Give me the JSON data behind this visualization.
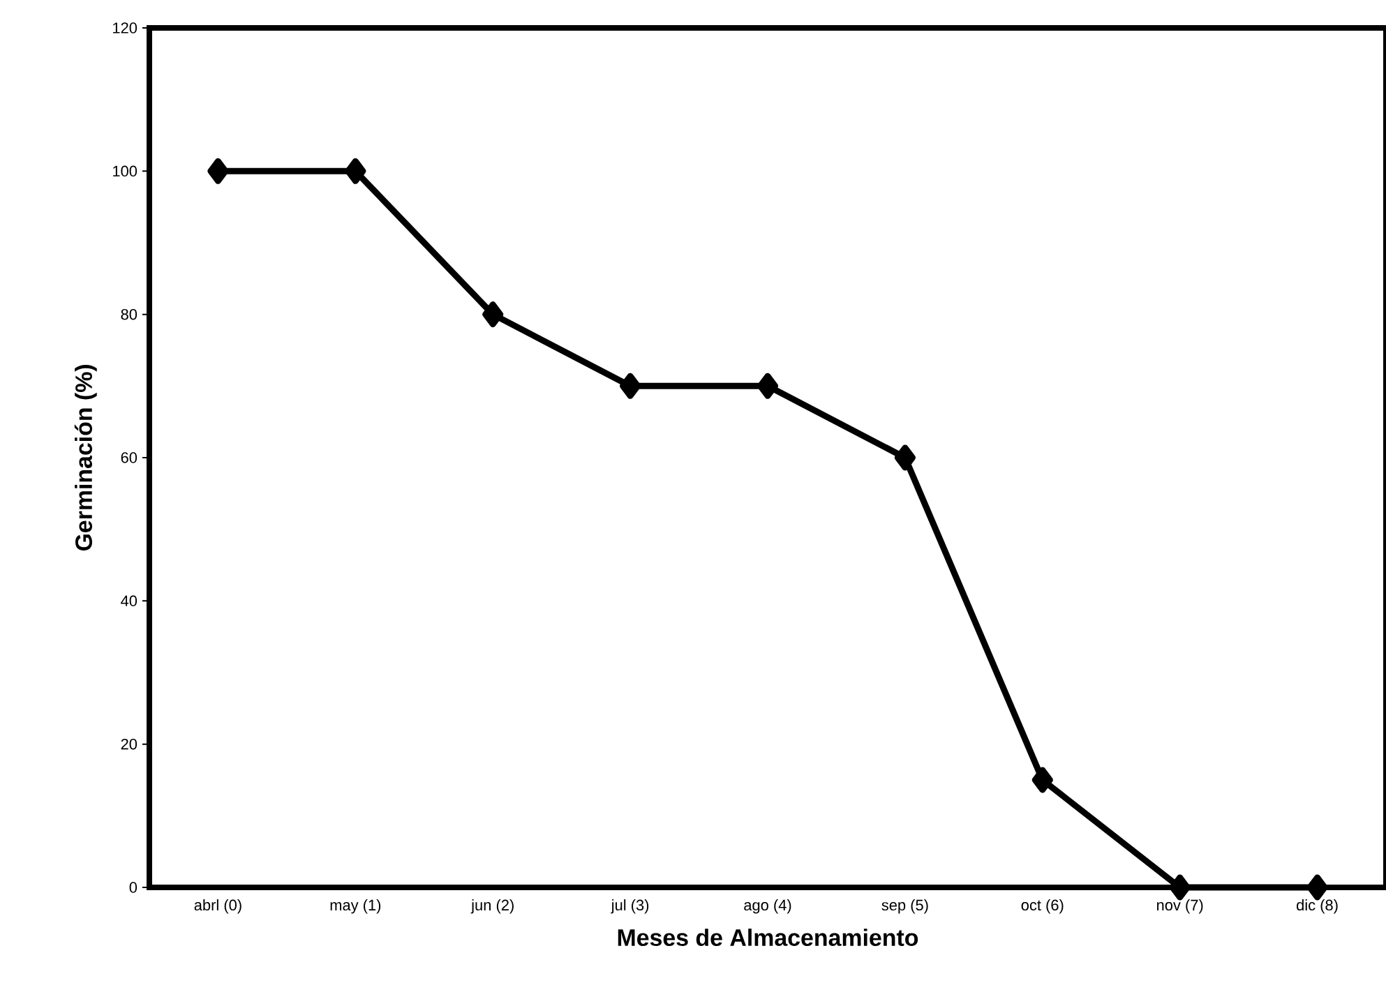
{
  "chart_data": {
    "type": "line",
    "xlabel": "Meses de Almacenamiento",
    "ylabel": "Germinación (%)",
    "categories": [
      "abrl (0)",
      "may (1)",
      "jun (2)",
      "jul (3)",
      "ago (4)",
      "sep (5)",
      "oct (6)",
      "nov (7)",
      "dic (8)"
    ],
    "series": [
      {
        "color": "#000000",
        "values": [
          100,
          100,
          80,
          70,
          70,
          60,
          15,
          0,
          0
        ]
      }
    ],
    "marker": "diamond",
    "line_style": "solid",
    "ylim": [
      0,
      120
    ],
    "yticks": [
      0,
      20,
      40,
      60,
      80,
      100,
      120
    ]
  }
}
